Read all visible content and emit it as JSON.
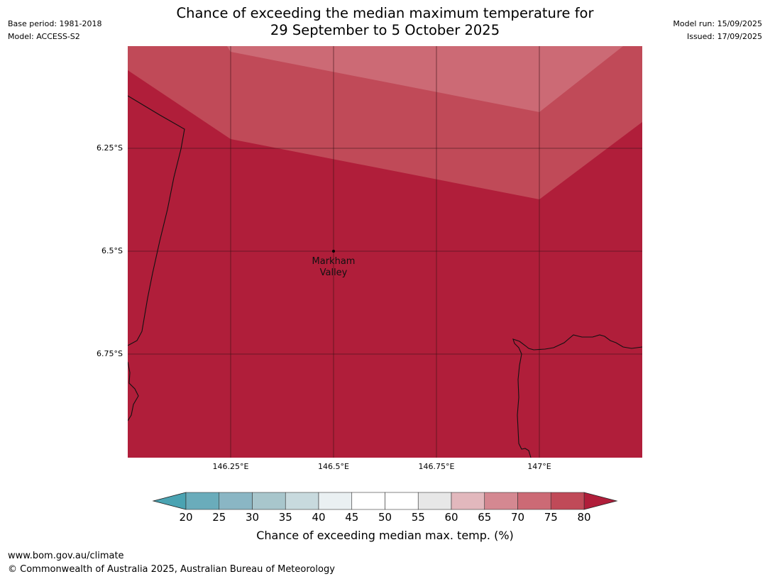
{
  "header": {
    "base_period": "Base period: 1981-2018",
    "model": "Model: ACCESS-S2",
    "model_run": "Model run: 15/09/2025",
    "issued": "Issued: 17/09/2025"
  },
  "title": {
    "line1": "Chance of exceeding the median maximum temperature for",
    "line2": "29 September to 5 October 2025"
  },
  "map": {
    "lat_ticks": [
      "6.25°S",
      "6.5°S",
      "6.75°S"
    ],
    "lon_ticks": [
      "146.25°E",
      "146.5°E",
      "146.75°E",
      "147°E"
    ],
    "place_label": {
      "line1": "Markham",
      "line2": "Valley",
      "lon": 146.5,
      "lat": -6.5
    },
    "extent": {
      "lon_min": 146.0,
      "lon_max": 147.25,
      "lat_max": -6.0,
      "lat_min": -7.0
    },
    "fill_colors": {
      "band_75_80": "#b01e3a",
      "band_70_75": "#c04a58",
      "band_65_70": "#cc6a75"
    }
  },
  "colorbar": {
    "ticks": [
      "20",
      "25",
      "30",
      "35",
      "40",
      "45",
      "50",
      "55",
      "60",
      "65",
      "70",
      "75",
      "80"
    ],
    "colors": [
      "#6aacbb",
      "#8ab6c4",
      "#a8c6cc",
      "#c8dade",
      "#eaf0f2",
      "#ffffff",
      "#ffffff",
      "#e7e7e7",
      "#e2b8bd",
      "#d48891",
      "#cc6a75",
      "#c04a58"
    ],
    "under_color": "#4aa3b2",
    "over_color": "#b01e3a",
    "label": "Chance of exceeding median max. temp. (%)"
  },
  "footer": {
    "url": "www.bom.gov.au/climate",
    "copyright": "© Commonwealth of Australia 2025, Australian Bureau of Meteorology"
  }
}
